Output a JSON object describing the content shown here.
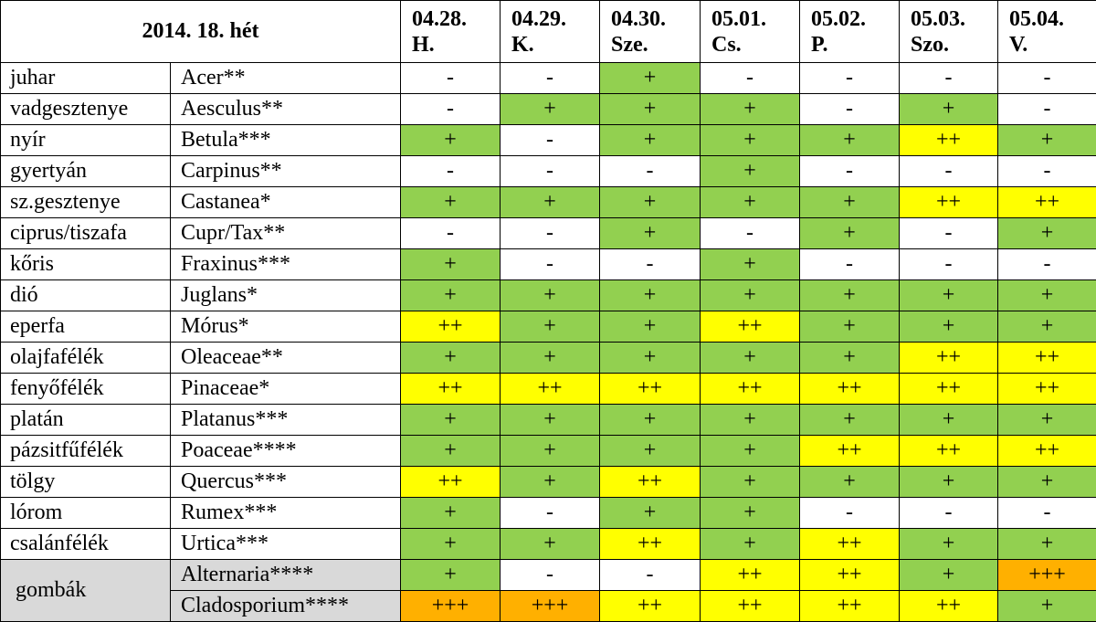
{
  "chart_data": {
    "type": "table",
    "title": "2014. 18. hét",
    "colors": {
      "-": "#ffffff",
      "+": "#92d050",
      "++": "#ffff00",
      "+++": "#ffb000",
      "group_bg": "#d9d9d9"
    },
    "days": [
      {
        "date": "04.28.",
        "day": "H."
      },
      {
        "date": "04.29.",
        "day": "K."
      },
      {
        "date": "04.30.",
        "day": "Sze."
      },
      {
        "date": "05.01.",
        "day": "Cs."
      },
      {
        "date": "05.02.",
        "day": "P."
      },
      {
        "date": "05.03.",
        "day": "Szo."
      },
      {
        "date": "05.04.",
        "day": "V."
      }
    ],
    "rows": [
      {
        "hu": "juhar",
        "latin": "Acer**",
        "values": [
          "-",
          "-",
          "+",
          "-",
          "-",
          "-",
          "-"
        ]
      },
      {
        "hu": "vadgesztenye",
        "latin": "Aesculus**",
        "values": [
          "-",
          "+",
          "+",
          "+",
          "-",
          "+",
          "-"
        ]
      },
      {
        "hu": "nyír",
        "latin": "Betula***",
        "values": [
          "+",
          "-",
          "+",
          "+",
          "+",
          "++",
          "+"
        ]
      },
      {
        "hu": "gyertyán",
        "latin": "Carpinus**",
        "values": [
          "-",
          "-",
          "-",
          "+",
          "-",
          "-",
          "-"
        ]
      },
      {
        "hu": "sz.gesztenye",
        "latin": "Castanea*",
        "values": [
          "+",
          "+",
          "+",
          "+",
          "+",
          "++",
          "++"
        ]
      },
      {
        "hu": "ciprus/tiszafa",
        "latin": "Cupr/Tax**",
        "values": [
          "-",
          "-",
          "+",
          "-",
          "+",
          "-",
          "+"
        ]
      },
      {
        "hu": "kőris",
        "latin": "Fraxinus***",
        "values": [
          "+",
          "-",
          "-",
          "+",
          "-",
          "-",
          "-"
        ]
      },
      {
        "hu": "dió",
        "latin": "Juglans*",
        "values": [
          "+",
          "+",
          "+",
          "+",
          "+",
          "+",
          "+"
        ]
      },
      {
        "hu": "eperfa",
        "latin": "Mórus*",
        "values": [
          "++",
          "+",
          "+",
          "++",
          "+",
          "+",
          "+"
        ]
      },
      {
        "hu": "olajfafélék",
        "latin": "Oleaceae**",
        "values": [
          "+",
          "+",
          "+",
          "+",
          "+",
          "++",
          "++"
        ]
      },
      {
        "hu": "fenyőfélék",
        "latin": "Pinaceae*",
        "values": [
          "++",
          "++",
          "++",
          "++",
          "++",
          "++",
          "++"
        ]
      },
      {
        "hu": "platán",
        "latin": "Platanus***",
        "values": [
          "+",
          "+",
          "+",
          "+",
          "+",
          "+",
          "+"
        ]
      },
      {
        "hu": "pázsitfűfélék",
        "latin": "Poaceae****",
        "values": [
          "+",
          "+",
          "+",
          "+",
          "++",
          "++",
          "++"
        ]
      },
      {
        "hu": "tölgy",
        "latin": "Quercus***",
        "values": [
          "++",
          "+",
          "++",
          "+",
          "+",
          "+",
          "+"
        ]
      },
      {
        "hu": "lórom",
        "latin": "Rumex***",
        "values": [
          "+",
          "-",
          "+",
          "+",
          "-",
          "-",
          "-"
        ]
      },
      {
        "hu": "csalánfélék",
        "latin": "Urtica***",
        "values": [
          "+",
          "+",
          "++",
          "+",
          "++",
          "+",
          "+"
        ]
      }
    ],
    "group": {
      "label": "gombák",
      "rows": [
        {
          "latin": "Alternaria****",
          "values": [
            "+",
            "-",
            "-",
            "++",
            "++",
            "+",
            "+++"
          ]
        },
        {
          "latin": "Cladosporium****",
          "values": [
            "+++",
            "+++",
            "++",
            "++",
            "++",
            "++",
            "+"
          ]
        }
      ]
    }
  }
}
